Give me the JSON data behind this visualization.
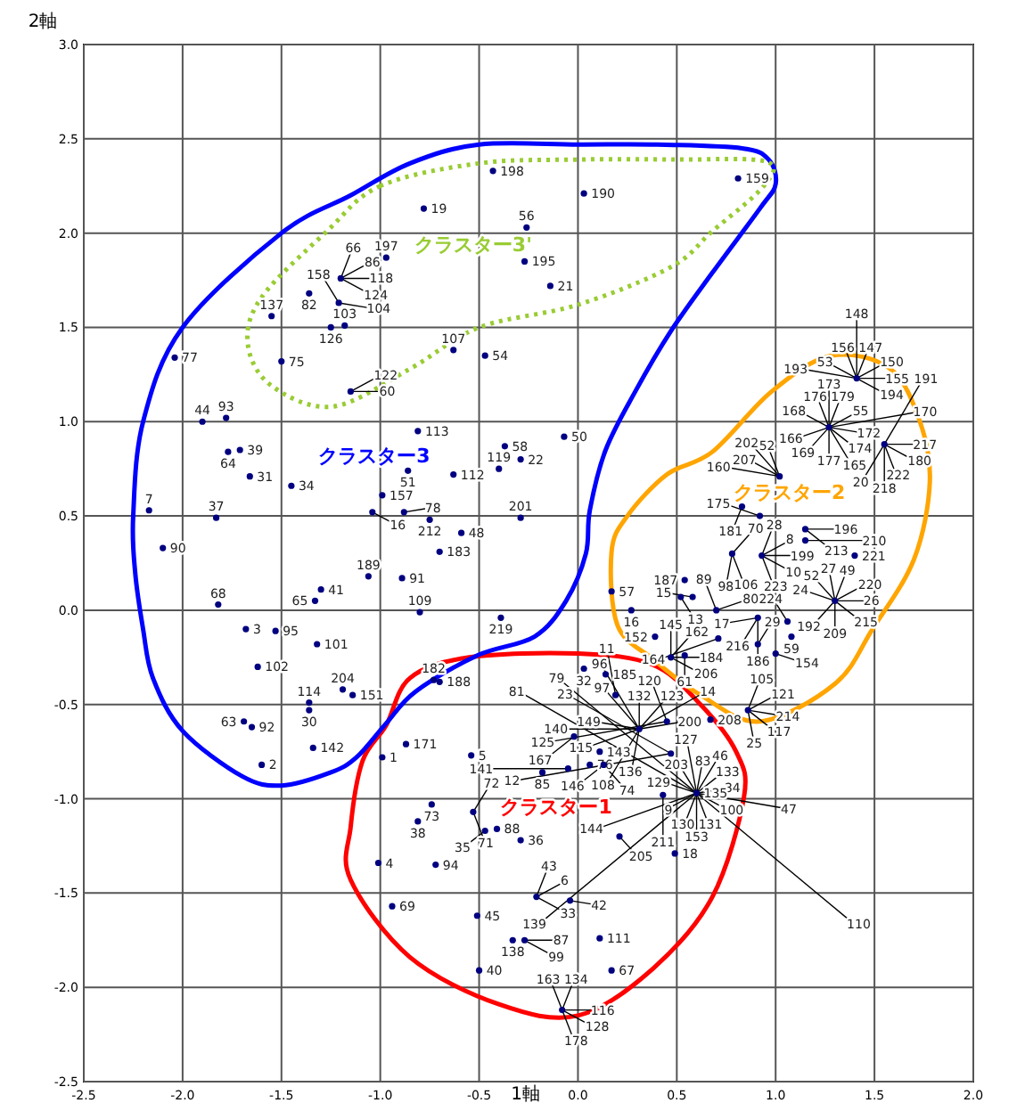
{
  "chart_data": {
    "type": "scatter",
    "xlabel": "1軸",
    "ylabel": "2軸",
    "color": "#000080",
    "marker": "circle",
    "grid": true,
    "xlim": [
      -2.5,
      2.0
    ],
    "ylim": [
      -2.5,
      3.0
    ],
    "xticks": [
      -2.5,
      {
        "value": -2,
        "label": "-2.0"
      },
      -1.5,
      {
        "value": -1,
        "label": "-1.0"
      },
      -0.5,
      {
        "value": 0,
        "label": "0.0"
      },
      0.5,
      {
        "value": 1,
        "label": "1.0"
      },
      1.5,
      {
        "value": 2,
        "label": "2.0"
      }
    ],
    "yticks": [
      -2.5,
      {
        "value": -2,
        "label": "-2.0"
      },
      -1.5,
      {
        "value": -1,
        "label": "-1.0"
      },
      -0.5,
      {
        "value": 0,
        "label": "0.0"
      },
      0.5,
      {
        "value": 1,
        "label": "1.0"
      },
      1.5,
      {
        "value": 2,
        "label": "2.0"
      },
      2.5,
      {
        "value": 3,
        "label": "3.0"
      }
    ],
    "x": [
      -1.2,
      -1.21,
      -1.36,
      -1.55,
      -1.25,
      -1.18,
      -2.04,
      -1.5,
      -1.15,
      -1.9,
      -1.78,
      -1.77,
      -1.71,
      -1.66,
      -1.45,
      -2.17,
      -1.83,
      -2.1,
      -0.43,
      0.03,
      -0.78,
      -0.26,
      -0.97,
      -0.27,
      -0.14,
      -0.63,
      -0.47,
      -0.81,
      -0.07,
      -0.37,
      -0.29,
      -0.86,
      -0.63,
      -0.4,
      -0.99,
      -1.04,
      -0.88,
      -0.75,
      -0.29,
      -0.59,
      -0.7,
      0.81,
      1.41,
      1.27,
      1.55,
      1.02,
      0.83,
      0.92,
      1.15,
      1.15,
      1.4,
      0.78,
      0.93,
      1.3,
      0.7,
      0.54,
      0.58,
      0.52,
      0.91,
      1.06,
      1.08,
      0.71,
      0.91,
      1.0,
      0.39,
      0.47,
      0.54,
      0.86,
      0.45,
      0.67,
      0.47,
      0.43,
      0.49,
      0.6,
      -1.06,
      -0.89,
      -0.8,
      -0.39,
      0.17,
      0.27,
      -0.73,
      -0.7,
      0.03,
      0.14,
      0.19,
      0.31,
      -0.02,
      0.11,
      -0.18,
      -0.05,
      0.06,
      0.13,
      -0.99,
      -0.87,
      -0.54,
      -0.53,
      -0.74,
      -0.81,
      -0.41,
      -0.47,
      -0.29,
      -1.01,
      -0.72,
      0.21,
      -0.21,
      -0.04,
      -0.94,
      -0.51,
      0.11,
      -0.27,
      -0.33,
      -0.5,
      0.17,
      -0.08,
      -1.3,
      -1.33,
      -1.82,
      -1.68,
      -1.53,
      -1.32,
      -1.62,
      -1.19,
      -1.14,
      -1.36,
      -1.36,
      -1.69,
      -1.65,
      -1.34,
      -1.6
    ],
    "values": [
      1.76,
      1.63,
      1.68,
      1.56,
      1.5,
      1.51,
      1.34,
      1.32,
      1.16,
      1.0,
      1.02,
      0.84,
      0.85,
      0.71,
      0.66,
      0.53,
      0.49,
      0.33,
      2.33,
      2.21,
      2.13,
      2.03,
      1.87,
      1.85,
      1.72,
      1.38,
      1.35,
      0.95,
      0.92,
      0.87,
      0.8,
      0.74,
      0.72,
      0.75,
      0.61,
      0.52,
      0.52,
      0.48,
      0.49,
      0.41,
      0.31,
      2.29,
      1.23,
      0.97,
      0.88,
      0.71,
      0.55,
      0.5,
      0.43,
      0.37,
      0.29,
      0.3,
      0.29,
      0.05,
      0.0,
      0.16,
      0.07,
      0.07,
      -0.04,
      -0.06,
      -0.14,
      -0.15,
      -0.18,
      -0.23,
      -0.14,
      -0.25,
      -0.24,
      -0.53,
      -0.59,
      -0.58,
      -0.76,
      -0.98,
      -1.29,
      -0.97,
      0.18,
      0.17,
      -0.01,
      -0.04,
      0.1,
      0.0,
      -0.37,
      -0.38,
      -0.31,
      -0.34,
      -0.45,
      -0.63,
      -0.67,
      -0.75,
      -0.86,
      -0.84,
      -0.82,
      -0.82,
      -0.78,
      -0.71,
      -0.77,
      -1.07,
      -1.03,
      -1.12,
      -1.16,
      -1.17,
      -1.22,
      -1.34,
      -1.35,
      -1.2,
      -1.52,
      -1.54,
      -1.57,
      -1.62,
      -1.74,
      -1.75,
      -1.75,
      -1.91,
      -1.91,
      -2.12,
      0.11,
      0.05,
      0.03,
      -0.1,
      -0.11,
      -0.18,
      -0.3,
      -0.42,
      -0.45,
      -0.49,
      -0.53,
      -0.59,
      -0.62,
      -0.73,
      -0.82
    ],
    "annotations": [
      "クラスター1",
      "クラスター2",
      "クラスター3",
      "クラスター3'",
      {
        "text": "118",
        "x": -1.2,
        "y": 1.76
      },
      {
        "text": "124",
        "x": -1.2,
        "y": 1.76
      },
      {
        "text": "86",
        "x": -1.2,
        "y": 1.76
      },
      {
        "text": "66",
        "x": -1.2,
        "y": 1.76
      },
      {
        "text": "104",
        "x": -1.21,
        "y": 1.63
      },
      {
        "text": "158",
        "x": -1.21,
        "y": 1.63
      },
      {
        "text": "82",
        "x": -1.36,
        "y": 1.68
      },
      {
        "text": "137",
        "x": -1.55,
        "y": 1.56
      },
      {
        "text": "126",
        "x": -1.25,
        "y": 1.5
      },
      {
        "text": "103",
        "x": -1.18,
        "y": 1.51
      },
      {
        "text": "77",
        "x": -2.04,
        "y": 1.34
      },
      {
        "text": "75",
        "x": -1.5,
        "y": 1.32
      },
      {
        "text": "60",
        "x": -1.15,
        "y": 1.16
      },
      {
        "text": "122",
        "x": -1.15,
        "y": 1.16
      },
      {
        "text": "44",
        "x": -1.9,
        "y": 1.0
      },
      {
        "text": "93",
        "x": -1.78,
        "y": 1.02
      },
      {
        "text": "64",
        "x": -1.77,
        "y": 0.84
      },
      {
        "text": "39",
        "x": -1.71,
        "y": 0.85
      },
      {
        "text": "31",
        "x": -1.66,
        "y": 0.71
      },
      {
        "text": "34",
        "x": -1.45,
        "y": 0.66
      },
      {
        "text": "7",
        "x": -2.17,
        "y": 0.53
      },
      {
        "text": "37",
        "x": -1.83,
        "y": 0.49
      },
      {
        "text": "90",
        "x": -2.1,
        "y": 0.33
      },
      {
        "text": "198",
        "x": -0.43,
        "y": 2.33
      },
      {
        "text": "190",
        "x": 0.03,
        "y": 2.21
      },
      {
        "text": "19",
        "x": -0.78,
        "y": 2.13
      },
      {
        "text": "56",
        "x": -0.26,
        "y": 2.03
      },
      {
        "text": "197",
        "x": -0.97,
        "y": 1.87
      },
      {
        "text": "195",
        "x": -0.27,
        "y": 1.85
      },
      {
        "text": "21",
        "x": -0.14,
        "y": 1.72
      },
      {
        "text": "107",
        "x": -0.63,
        "y": 1.38
      },
      {
        "text": "54",
        "x": -0.47,
        "y": 1.35
      },
      {
        "text": "113",
        "x": -0.81,
        "y": 0.95
      },
      {
        "text": "50",
        "x": -0.07,
        "y": 0.92
      },
      {
        "text": "58",
        "x": -0.37,
        "y": 0.87
      },
      {
        "text": "22",
        "x": -0.29,
        "y": 0.8
      },
      {
        "text": "51",
        "x": -0.86,
        "y": 0.74
      },
      {
        "text": "112",
        "x": -0.63,
        "y": 0.72
      },
      {
        "text": "119",
        "x": -0.4,
        "y": 0.75
      },
      {
        "text": "157",
        "x": -0.99,
        "y": 0.61
      },
      {
        "text": "16",
        "x": -1.04,
        "y": 0.52
      },
      {
        "text": "78",
        "x": -0.88,
        "y": 0.52
      },
      {
        "text": "212",
        "x": -0.75,
        "y": 0.48
      },
      {
        "text": "201",
        "x": -0.29,
        "y": 0.49
      },
      {
        "text": "48",
        "x": -0.59,
        "y": 0.41
      },
      {
        "text": "183",
        "x": -0.7,
        "y": 0.31
      },
      {
        "text": "159",
        "x": 0.81,
        "y": 2.29
      },
      {
        "text": "155",
        "x": 1.41,
        "y": 1.23
      },
      {
        "text": "150",
        "x": 1.41,
        "y": 1.23
      },
      {
        "text": "194",
        "x": 1.41,
        "y": 1.23
      },
      {
        "text": "147",
        "x": 1.41,
        "y": 1.23
      },
      {
        "text": "156",
        "x": 1.41,
        "y": 1.23
      },
      {
        "text": "53",
        "x": 1.41,
        "y": 1.23
      },
      {
        "text": "193",
        "x": 1.41,
        "y": 1.23
      },
      {
        "text": "148",
        "x": 1.41,
        "y": 1.23
      },
      {
        "text": "172",
        "x": 1.27,
        "y": 0.97
      },
      {
        "text": "55",
        "x": 1.27,
        "y": 0.97
      },
      {
        "text": "174",
        "x": 1.27,
        "y": 0.97
      },
      {
        "text": "179",
        "x": 1.27,
        "y": 0.97
      },
      {
        "text": "177",
        "x": 1.27,
        "y": 0.97
      },
      {
        "text": "176",
        "x": 1.27,
        "y": 0.97
      },
      {
        "text": "169",
        "x": 1.27,
        "y": 0.97
      },
      {
        "text": "168",
        "x": 1.27,
        "y": 0.97
      },
      {
        "text": "166",
        "x": 1.27,
        "y": 0.97
      },
      {
        "text": "165",
        "x": 1.27,
        "y": 0.97
      },
      {
        "text": "173",
        "x": 1.27,
        "y": 0.97
      },
      {
        "text": "170",
        "x": 1.27,
        "y": 0.97
      },
      {
        "text": "217",
        "x": 1.55,
        "y": 0.88
      },
      {
        "text": "180",
        "x": 1.55,
        "y": 0.88
      },
      {
        "text": "222",
        "x": 1.55,
        "y": 0.88
      },
      {
        "text": "218",
        "x": 1.55,
        "y": 0.88
      },
      {
        "text": "191",
        "x": 1.55,
        "y": 0.88
      },
      {
        "text": "20",
        "x": 1.55,
        "y": 0.88
      },
      {
        "text": "52",
        "x": 1.02,
        "y": 0.71
      },
      {
        "text": "207",
        "x": 1.02,
        "y": 0.71
      },
      {
        "text": "202",
        "x": 1.02,
        "y": 0.71
      },
      {
        "text": "160",
        "x": 1.02,
        "y": 0.71
      },
      {
        "text": "181",
        "x": 0.83,
        "y": 0.55
      },
      {
        "text": "175",
        "x": 0.92,
        "y": 0.5
      },
      {
        "text": "196",
        "x": 1.15,
        "y": 0.43
      },
      {
        "text": "213",
        "x": 1.15,
        "y": 0.43
      },
      {
        "text": "210",
        "x": 1.15,
        "y": 0.37
      },
      {
        "text": "221",
        "x": 1.4,
        "y": 0.29
      },
      {
        "text": "106",
        "x": 0.78,
        "y": 0.3
      },
      {
        "text": "70",
        "x": 0.78,
        "y": 0.3
      },
      {
        "text": "98",
        "x": 0.78,
        "y": 0.3
      },
      {
        "text": "199",
        "x": 0.93,
        "y": 0.29
      },
      {
        "text": "8",
        "x": 0.93,
        "y": 0.29
      },
      {
        "text": "10",
        "x": 0.93,
        "y": 0.29
      },
      {
        "text": "28",
        "x": 0.93,
        "y": 0.29
      },
      {
        "text": "223",
        "x": 0.93,
        "y": 0.29
      },
      {
        "text": "26",
        "x": 1.3,
        "y": 0.05
      },
      {
        "text": "220",
        "x": 1.3,
        "y": 0.05
      },
      {
        "text": "215",
        "x": 1.3,
        "y": 0.05
      },
      {
        "text": "49",
        "x": 1.3,
        "y": 0.05
      },
      {
        "text": "209",
        "x": 1.3,
        "y": 0.05
      },
      {
        "text": "27",
        "x": 1.3,
        "y": 0.05
      },
      {
        "text": "52",
        "x": 1.3,
        "y": 0.05
      },
      {
        "text": "192",
        "x": 1.3,
        "y": 0.05
      },
      {
        "text": "24",
        "x": 1.3,
        "y": 0.05
      },
      {
        "text": "80",
        "x": 0.7,
        "y": 0.0
      },
      {
        "text": "89",
        "x": 0.7,
        "y": 0.0
      },
      {
        "text": "187",
        "x": 0.54,
        "y": 0.16
      },
      {
        "text": "15",
        "x": 0.58,
        "y": 0.07
      },
      {
        "text": "13",
        "x": 0.52,
        "y": 0.07
      },
      {
        "text": "216",
        "x": 0.91,
        "y": -0.04
      },
      {
        "text": "186",
        "x": 0.91,
        "y": -0.04
      },
      {
        "text": "17",
        "x": 0.91,
        "y": -0.04
      },
      {
        "text": "224",
        "x": 1.06,
        "y": -0.06
      },
      {
        "text": "59",
        "x": 1.08,
        "y": -0.14
      },
      {
        "text": "164",
        "x": 0.71,
        "y": -0.15
      },
      {
        "text": "29",
        "x": 0.91,
        "y": -0.18
      },
      {
        "text": "154",
        "x": 1.0,
        "y": -0.23
      },
      {
        "text": "152",
        "x": 0.39,
        "y": -0.14
      },
      {
        "text": "184",
        "x": 0.47,
        "y": -0.25
      },
      {
        "text": "206",
        "x": 0.47,
        "y": -0.25
      },
      {
        "text": "162",
        "x": 0.47,
        "y": -0.25
      },
      {
        "text": "145",
        "x": 0.47,
        "y": -0.25
      },
      {
        "text": "61",
        "x": 0.54,
        "y": -0.24
      },
      {
        "text": "214",
        "x": 0.86,
        "y": -0.53
      },
      {
        "text": "121",
        "x": 0.86,
        "y": -0.53
      },
      {
        "text": "117",
        "x": 0.86,
        "y": -0.53
      },
      {
        "text": "105",
        "x": 0.86,
        "y": -0.53
      },
      {
        "text": "25",
        "x": 0.86,
        "y": -0.53
      },
      {
        "text": "120",
        "x": 0.45,
        "y": -0.59
      },
      {
        "text": "125",
        "x": 0.45,
        "y": -0.59
      },
      {
        "text": "208",
        "x": 0.67,
        "y": -0.58
      },
      {
        "text": "23",
        "x": 0.47,
        "y": -0.76
      },
      {
        "text": "12",
        "x": 0.47,
        "y": -0.76
      },
      {
        "text": "211",
        "x": 0.43,
        "y": -0.98
      },
      {
        "text": "18",
        "x": 0.49,
        "y": -1.29
      },
      {
        "text": "34",
        "x": 0.6,
        "y": -0.97
      },
      {
        "text": "100",
        "x": 0.6,
        "y": -0.97
      },
      {
        "text": "133",
        "x": 0.6,
        "y": -0.97
      },
      {
        "text": "131",
        "x": 0.6,
        "y": -0.97
      },
      {
        "text": "83",
        "x": 0.6,
        "y": -0.97
      },
      {
        "text": "130",
        "x": 0.6,
        "y": -0.97
      },
      {
        "text": "203",
        "x": 0.6,
        "y": -0.97
      },
      {
        "text": "9",
        "x": 0.6,
        "y": -0.97
      },
      {
        "text": "129",
        "x": 0.6,
        "y": -0.97
      },
      {
        "text": "46",
        "x": 0.6,
        "y": -0.97
      },
      {
        "text": "153",
        "x": 0.6,
        "y": -0.97
      },
      {
        "text": "127",
        "x": 0.6,
        "y": -0.97
      },
      {
        "text": "47",
        "x": 0.6,
        "y": -0.97
      },
      {
        "text": "144",
        "x": 0.6,
        "y": -0.97
      },
      {
        "text": "79",
        "x": 0.6,
        "y": -0.97
      },
      {
        "text": "110",
        "x": 0.6,
        "y": -0.97
      },
      {
        "text": "139",
        "x": 0.6,
        "y": -0.97
      },
      {
        "text": "81",
        "x": 0.6,
        "y": -0.97
      },
      {
        "text": "135",
        "x": 0.6,
        "y": -0.97
      },
      {
        "text": "189",
        "x": -1.06,
        "y": 0.18
      },
      {
        "text": "91",
        "x": -0.89,
        "y": 0.17
      },
      {
        "text": "109",
        "x": -0.8,
        "y": -0.01
      },
      {
        "text": "219",
        "x": -0.39,
        "y": -0.04
      },
      {
        "text": "57",
        "x": 0.17,
        "y": 0.1
      },
      {
        "text": "16",
        "x": 0.27,
        "y": 0.0
      },
      {
        "text": "182",
        "x": -0.73,
        "y": -0.37
      },
      {
        "text": "188",
        "x": -0.7,
        "y": -0.38
      },
      {
        "text": "32",
        "x": 0.03,
        "y": -0.31
      },
      {
        "text": "185",
        "x": 0.14,
        "y": -0.34
      },
      {
        "text": "11",
        "x": 0.19,
        "y": -0.45
      },
      {
        "text": "132",
        "x": 0.31,
        "y": -0.63
      },
      {
        "text": "200",
        "x": 0.31,
        "y": -0.63
      },
      {
        "text": "123",
        "x": 0.31,
        "y": -0.63
      },
      {
        "text": "136",
        "x": 0.31,
        "y": -0.63
      },
      {
        "text": "149",
        "x": 0.31,
        "y": -0.63
      },
      {
        "text": "115",
        "x": 0.31,
        "y": -0.63
      },
      {
        "text": "108",
        "x": 0.31,
        "y": -0.63
      },
      {
        "text": "97",
        "x": 0.31,
        "y": -0.63
      },
      {
        "text": "14",
        "x": 0.31,
        "y": -0.63
      },
      {
        "text": "140",
        "x": 0.31,
        "y": -0.63
      },
      {
        "text": "96",
        "x": 0.31,
        "y": -0.63
      },
      {
        "text": "167",
        "x": -0.02,
        "y": -0.67
      },
      {
        "text": "143",
        "x": 0.11,
        "y": -0.75
      },
      {
        "text": "85",
        "x": -0.18,
        "y": -0.86
      },
      {
        "text": "141",
        "x": -0.05,
        "y": -0.84
      },
      {
        "text": "76",
        "x": 0.06,
        "y": -0.82
      },
      {
        "text": "74",
        "x": 0.13,
        "y": -0.82
      },
      {
        "text": "146",
        "x": 0.13,
        "y": -0.82
      },
      {
        "text": "1",
        "x": -0.99,
        "y": -0.78
      },
      {
        "text": "171",
        "x": -0.87,
        "y": -0.71
      },
      {
        "text": "5",
        "x": -0.54,
        "y": -0.77
      },
      {
        "text": "72",
        "x": -0.53,
        "y": -1.07
      },
      {
        "text": "71",
        "x": -0.53,
        "y": -1.07
      },
      {
        "text": "73",
        "x": -0.74,
        "y": -1.03
      },
      {
        "text": "38",
        "x": -0.81,
        "y": -1.12
      },
      {
        "text": "88",
        "x": -0.41,
        "y": -1.16
      },
      {
        "text": "35",
        "x": -0.47,
        "y": -1.17
      },
      {
        "text": "36",
        "x": -0.29,
        "y": -1.22
      },
      {
        "text": "4",
        "x": -1.01,
        "y": -1.34
      },
      {
        "text": "94",
        "x": -0.72,
        "y": -1.35
      },
      {
        "text": "205",
        "x": 0.21,
        "y": -1.2
      },
      {
        "text": "6",
        "x": -0.21,
        "y": -1.52
      },
      {
        "text": "33",
        "x": -0.21,
        "y": -1.52
      },
      {
        "text": "43",
        "x": -0.21,
        "y": -1.52
      },
      {
        "text": "42",
        "x": -0.04,
        "y": -1.54
      },
      {
        "text": "69",
        "x": -0.94,
        "y": -1.57
      },
      {
        "text": "45",
        "x": -0.51,
        "y": -1.62
      },
      {
        "text": "111",
        "x": 0.11,
        "y": -1.74
      },
      {
        "text": "87",
        "x": -0.27,
        "y": -1.75
      },
      {
        "text": "99",
        "x": -0.27,
        "y": -1.75
      },
      {
        "text": "138",
        "x": -0.33,
        "y": -1.75
      },
      {
        "text": "40",
        "x": -0.5,
        "y": -1.91
      },
      {
        "text": "67",
        "x": 0.17,
        "y": -1.91
      },
      {
        "text": "116",
        "x": -0.08,
        "y": -2.12
      },
      {
        "text": "128",
        "x": -0.08,
        "y": -2.12
      },
      {
        "text": "134",
        "x": -0.08,
        "y": -2.12
      },
      {
        "text": "178",
        "x": -0.08,
        "y": -2.12
      },
      {
        "text": "163",
        "x": -0.08,
        "y": -2.12
      },
      {
        "text": "41",
        "x": -1.3,
        "y": 0.11
      },
      {
        "text": "65",
        "x": -1.33,
        "y": 0.05
      },
      {
        "text": "68",
        "x": -1.82,
        "y": 0.03
      },
      {
        "text": "3",
        "x": -1.68,
        "y": -0.1
      },
      {
        "text": "95",
        "x": -1.53,
        "y": -0.11
      },
      {
        "text": "101",
        "x": -1.32,
        "y": -0.18
      },
      {
        "text": "102",
        "x": -1.62,
        "y": -0.3
      },
      {
        "text": "204",
        "x": -1.19,
        "y": -0.42
      },
      {
        "text": "151",
        "x": -1.14,
        "y": -0.45
      },
      {
        "text": "114",
        "x": -1.36,
        "y": -0.49
      },
      {
        "text": "30",
        "x": -1.36,
        "y": -0.53
      },
      {
        "text": "63",
        "x": -1.69,
        "y": -0.59
      },
      {
        "text": "92",
        "x": -1.65,
        "y": -0.62
      },
      {
        "text": "142",
        "x": -1.34,
        "y": -0.73
      },
      {
        "text": "2",
        "x": -1.6,
        "y": -0.82
      }
    ]
  }
}
